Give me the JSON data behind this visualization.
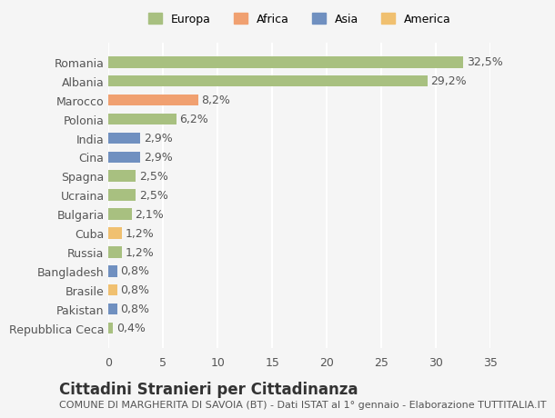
{
  "categories": [
    "Repubblica Ceca",
    "Pakistan",
    "Brasile",
    "Bangladesh",
    "Russia",
    "Cuba",
    "Bulgaria",
    "Ucraina",
    "Spagna",
    "Cina",
    "India",
    "Polonia",
    "Marocco",
    "Albania",
    "Romania"
  ],
  "values": [
    0.4,
    0.8,
    0.8,
    0.8,
    1.2,
    1.2,
    2.1,
    2.5,
    2.5,
    2.9,
    2.9,
    6.2,
    8.2,
    29.2,
    32.5
  ],
  "labels": [
    "0,4%",
    "0,8%",
    "0,8%",
    "0,8%",
    "1,2%",
    "1,2%",
    "2,1%",
    "2,5%",
    "2,5%",
    "2,9%",
    "2,9%",
    "6,2%",
    "8,2%",
    "29,2%",
    "32,5%"
  ],
  "colors": [
    "#a8c080",
    "#7090c0",
    "#f0c070",
    "#7090c0",
    "#a8c080",
    "#f0c070",
    "#a8c080",
    "#a8c080",
    "#a8c080",
    "#7090c0",
    "#7090c0",
    "#a8c080",
    "#f0a070",
    "#a8c080",
    "#a8c080"
  ],
  "legend_labels": [
    "Europa",
    "Africa",
    "Asia",
    "America"
  ],
  "legend_colors": [
    "#a8c080",
    "#f0a070",
    "#7090c0",
    "#f0c070"
  ],
  "title": "Cittadini Stranieri per Cittadinanza",
  "subtitle": "COMUNE DI MARGHERITA DI SAVOIA (BT) - Dati ISTAT al 1° gennaio - Elaborazione TUTTITALIA.IT",
  "xlim": [
    0,
    35
  ],
  "xticks": [
    0,
    5,
    10,
    15,
    20,
    25,
    30,
    35
  ],
  "background_color": "#f5f5f5",
  "grid_color": "#ffffff",
  "bar_height": 0.6,
  "label_fontsize": 9,
  "tick_fontsize": 9,
  "title_fontsize": 12,
  "subtitle_fontsize": 8
}
